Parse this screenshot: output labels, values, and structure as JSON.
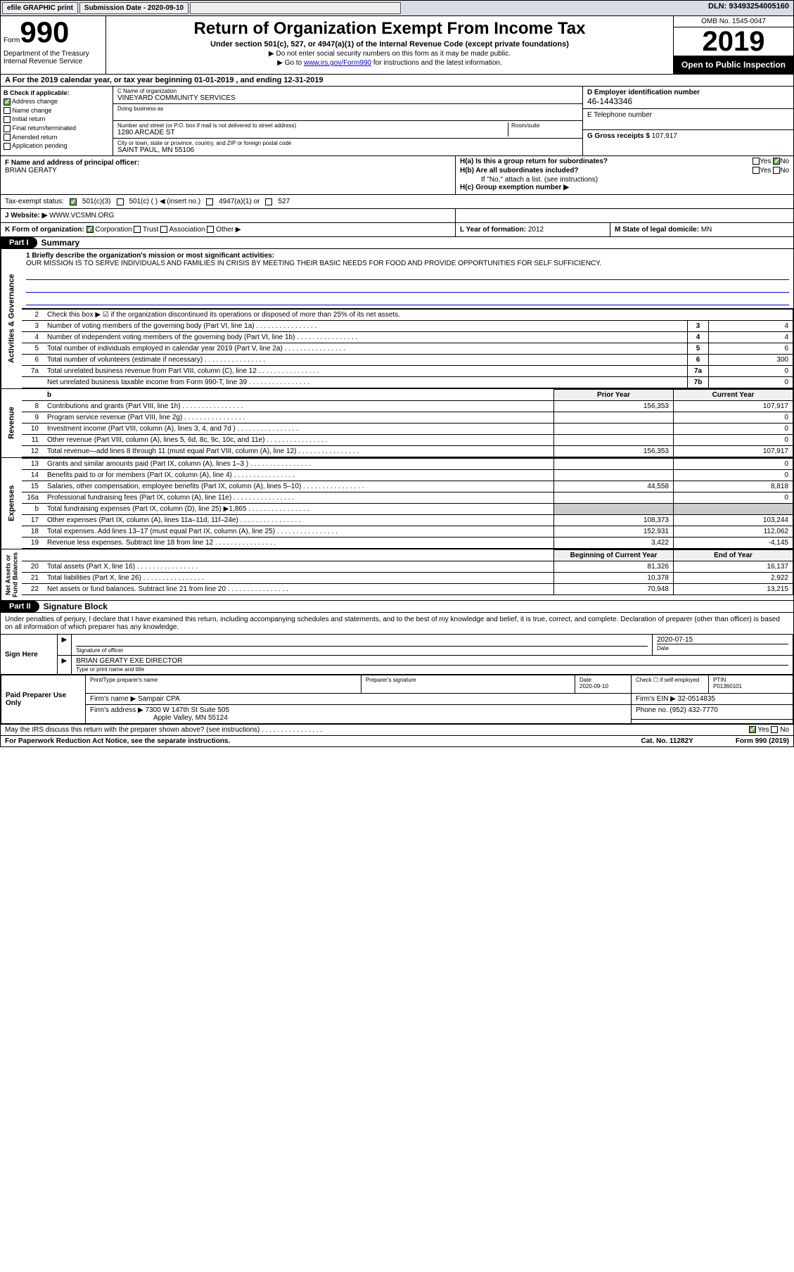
{
  "topbar": {
    "btn1": "efile GRAPHIC print",
    "btn2": "Submission Date - 2020-09-10",
    "dln": "DLN: 93493254005160"
  },
  "header": {
    "form_prefix": "Form",
    "form_number": "990",
    "title": "Return of Organization Exempt From Income Tax",
    "subtitle": "Under section 501(c), 527, or 4947(a)(1) of the Internal Revenue Code (except private foundations)",
    "line2": "▶ Do not enter social security numbers on this form as it may be made public.",
    "line3_pre": "▶ Go to ",
    "line3_link": "www.irs.gov/Form990",
    "line3_post": " for instructions and the latest information.",
    "dept": "Department of the Treasury\nInternal Revenue Service",
    "omb": "OMB No. 1545-0047",
    "year": "2019",
    "open": "Open to Public Inspection"
  },
  "row_a": "A For the 2019 calendar year, or tax year beginning 01-01-2019    , and ending 12-31-2019",
  "meta": {
    "check_label": "B Check if applicable:",
    "checks": [
      "Address change",
      "Name change",
      "Initial return",
      "Final return/terminated",
      "Amended return",
      "Application pending"
    ],
    "name_label": "C Name of organization",
    "name": "VINEYARD COMMUNITY SERVICES",
    "dba_label": "Doing business as",
    "addr_label": "Number and street (or P.O. box if mail is not delivered to street address)",
    "room_label": "Room/suite",
    "addr": "1280 ARCADE ST",
    "city_label": "City or town, state or province, country, and ZIP or foreign postal code",
    "city": "SAINT PAUL, MN  55106",
    "ein_label": "D Employer identification number",
    "ein": "46-1443346",
    "phone_label": "E Telephone number",
    "gross_label": "G Gross receipts $ ",
    "gross": "107,917"
  },
  "officer": {
    "label": "F  Name and address of principal officer:",
    "name": "BRIAN GERATY",
    "ha": "H(a)  Is this a group return for subordinates?",
    "hb": "H(b)  Are all subordinates included?",
    "hb_note": "If \"No,\" attach a list. (see instructions)",
    "hc": "H(c)  Group exemption number ▶",
    "yes": "Yes",
    "no": "No"
  },
  "status": {
    "label": "Tax-exempt status:",
    "opts": [
      "501(c)(3)",
      "501(c) ( ) ◀ (insert no.)",
      "4947(a)(1) or",
      "527"
    ]
  },
  "website": {
    "label": "J Website: ▶",
    "value": "WWW.VCSMN.ORG"
  },
  "korg": {
    "label": "K Form of organization:",
    "opts": [
      "Corporation",
      "Trust",
      "Association",
      "Other ▶"
    ],
    "year_label": "L Year of formation: ",
    "year": "2012",
    "state_label": "M State of legal domicile: ",
    "state": "MN"
  },
  "part1": {
    "label": "Part I",
    "title": "Summary"
  },
  "mission": {
    "label": "1   Briefly describe the organization's mission or most significant activities:",
    "text": "OUR MISSION IS TO SERVE INDIVIDUALS AND FAMILIES IN CRISIS BY MEETING THEIR BASIC NEEDS FOR FOOD AND PROVIDE OPPORTUNITIES FOR SELF SUFFICIENCY."
  },
  "gov_rows": [
    {
      "n": "2",
      "d": "Check this box ▶ ☑ if the organization discontinued its operations or disposed of more than 25% of its net assets.",
      "box": "",
      "v": ""
    },
    {
      "n": "3",
      "d": "Number of voting members of the governing body (Part VI, line 1a)",
      "box": "3",
      "v": "4"
    },
    {
      "n": "4",
      "d": "Number of independent voting members of the governing body (Part VI, line 1b)",
      "box": "4",
      "v": "4"
    },
    {
      "n": "5",
      "d": "Total number of individuals employed in calendar year 2019 (Part V, line 2a)",
      "box": "5",
      "v": "6"
    },
    {
      "n": "6",
      "d": "Total number of volunteers (estimate if necessary)",
      "box": "6",
      "v": "300"
    },
    {
      "n": "7a",
      "d": "Total unrelated business revenue from Part VIII, column (C), line 12",
      "box": "7a",
      "v": "0"
    },
    {
      "n": "",
      "d": "Net unrelated business taxable income from Form 990-T, line 39",
      "box": "7b",
      "v": "0"
    }
  ],
  "rev_hdr": {
    "py": "Prior Year",
    "cy": "Current Year"
  },
  "rev_rows": [
    {
      "n": "8",
      "d": "Contributions and grants (Part VIII, line 1h)",
      "py": "156,353",
      "cy": "107,917"
    },
    {
      "n": "9",
      "d": "Program service revenue (Part VIII, line 2g)",
      "py": "",
      "cy": "0"
    },
    {
      "n": "10",
      "d": "Investment income (Part VIII, column (A), lines 3, 4, and 7d )",
      "py": "",
      "cy": "0"
    },
    {
      "n": "11",
      "d": "Other revenue (Part VIII, column (A), lines 5, 6d, 8c, 9c, 10c, and 11e)",
      "py": "",
      "cy": "0"
    },
    {
      "n": "12",
      "d": "Total revenue—add lines 8 through 11 (must equal Part VIII, column (A), line 12)",
      "py": "156,353",
      "cy": "107,917"
    }
  ],
  "exp_rows": [
    {
      "n": "13",
      "d": "Grants and similar amounts paid (Part IX, column (A), lines 1–3 )",
      "py": "",
      "cy": "0"
    },
    {
      "n": "14",
      "d": "Benefits paid to or for members (Part IX, column (A), line 4)",
      "py": "",
      "cy": "0"
    },
    {
      "n": "15",
      "d": "Salaries, other compensation, employee benefits (Part IX, column (A), lines 5–10)",
      "py": "44,558",
      "cy": "8,818"
    },
    {
      "n": "16a",
      "d": "Professional fundraising fees (Part IX, column (A), line 11e)",
      "py": "",
      "cy": "0"
    },
    {
      "n": "b",
      "d": "Total fundraising expenses (Part IX, column (D), line 25) ▶1,865",
      "py": "shade",
      "cy": "shade"
    },
    {
      "n": "17",
      "d": "Other expenses (Part IX, column (A), lines 11a–11d, 11f–24e)",
      "py": "108,373",
      "cy": "103,244"
    },
    {
      "n": "18",
      "d": "Total expenses. Add lines 13–17 (must equal Part IX, column (A), line 25)",
      "py": "152,931",
      "cy": "112,062"
    },
    {
      "n": "19",
      "d": "Revenue less expenses. Subtract line 18 from line 12",
      "py": "3,422",
      "cy": "-4,145"
    }
  ],
  "na_hdr": {
    "py": "Beginning of Current Year",
    "cy": "End of Year"
  },
  "na_rows": [
    {
      "n": "20",
      "d": "Total assets (Part X, line 16)",
      "py": "81,326",
      "cy": "16,137"
    },
    {
      "n": "21",
      "d": "Total liabilities (Part X, line 26)",
      "py": "10,378",
      "cy": "2,922"
    },
    {
      "n": "22",
      "d": "Net assets or fund balances. Subtract line 21 from line 20",
      "py": "70,948",
      "cy": "13,215"
    }
  ],
  "vtabs": {
    "gov": "Activities & Governance",
    "rev": "Revenue",
    "exp": "Expenses",
    "na": "Net Assets or\nFund Balances"
  },
  "part2": {
    "label": "Part II",
    "title": "Signature Block"
  },
  "sig": {
    "intro": "Under penalties of perjury, I declare that I have examined this return, including accompanying schedules and statements, and to the best of my knowledge and belief, it is true, correct, and complete. Declaration of preparer (other than officer) is based on all information of which preparer has any knowledge.",
    "sign_here": "Sign Here",
    "sig_off": "Signature of officer",
    "date": "2020-07-15",
    "date_lbl": "Date",
    "name_title": "BRIAN GERATY EXE DIRECTOR",
    "type_lbl": "Type or print name and title"
  },
  "prep": {
    "side": "Paid Preparer Use Only",
    "c1": "Print/Type preparer's name",
    "c2": "Preparer's signature",
    "c3": "Date",
    "c3v": "2020-09-10",
    "c4": "Check ☐ if self-employed",
    "c5": "PTIN",
    "c5v": "P01360101",
    "firm_lbl": "Firm's name    ▶",
    "firm": "Sampair CPA",
    "ein_lbl": "Firm's EIN ▶",
    "ein": "32-0514835",
    "addr_lbl": "Firm's address ▶",
    "addr1": "7300 W 147th St Suite 505",
    "addr2": "Apple Valley, MN  55124",
    "phone_lbl": "Phone no. ",
    "phone": "(952) 432-7770"
  },
  "discuss": "May the IRS discuss this return with the preparer shown above? (see instructions)",
  "footer": {
    "left": "For Paperwork Reduction Act Notice, see the separate instructions.",
    "mid": "Cat. No. 11282Y",
    "right": "Form 990 (2019)"
  }
}
